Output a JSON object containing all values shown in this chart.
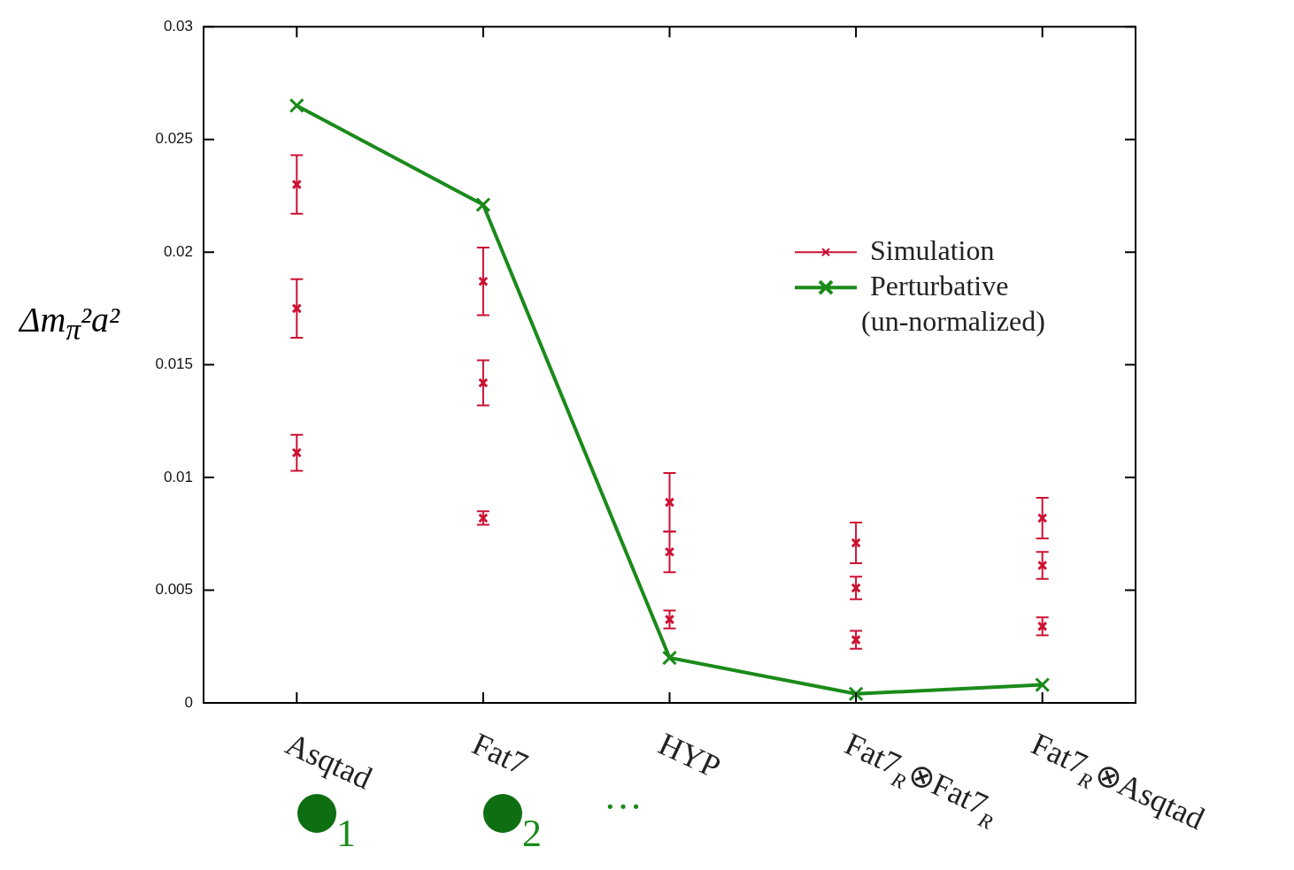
{
  "chart_data": {
    "type": "line",
    "ylabel": "Δm$_{π}$²a²",
    "categories": [
      "Asqtad",
      "Fat7",
      "HYP",
      "Fat7$_{R}$⊗Fat7$_{R}$",
      "Fat7$_{R}$⊗Asqtad"
    ],
    "ylim": [
      0,
      0.03
    ],
    "yticks": [
      0,
      0.005,
      0.01,
      0.015,
      0.02,
      0.025,
      0.03
    ],
    "grid": false,
    "legend": "right",
    "series": [
      {
        "name": "Simulation",
        "type": "scatter",
        "color": "#cc1133",
        "marker": "cross",
        "x": [
          "Asqtad",
          "Asqtad",
          "Asqtad",
          "Fat7",
          "Fat7",
          "Fat7",
          "HYP",
          "HYP",
          "HYP",
          "Fat7$_{R}$⊗Fat7$_{R}$",
          "Fat7$_{R}$⊗Fat7$_{R}$",
          "Fat7$_{R}$⊗Fat7$_{R}$",
          "Fat7$_{R}$⊗Asqtad",
          "Fat7$_{R}$⊗Asqtad",
          "Fat7$_{R}$⊗Asqtad"
        ],
        "values": [
          0.023,
          0.0175,
          0.0111,
          0.0187,
          0.0142,
          0.0082,
          0.0089,
          0.0067,
          0.0037,
          0.0071,
          0.0051,
          0.0028,
          0.0082,
          0.0061,
          0.0034
        ],
        "errors": [
          0.0013,
          0.0013,
          0.0008,
          0.0015,
          0.001,
          0.0003,
          0.0013,
          0.0009,
          0.0004,
          0.0009,
          0.0005,
          0.0004,
          0.0009,
          0.0006,
          0.0004
        ]
      },
      {
        "name": "Perturbative (un-normalized)",
        "type": "line",
        "color": "#1a8a1a",
        "marker": "cross",
        "line_style": "solid",
        "values": [
          0.0265,
          0.0221,
          0.002,
          0.0004,
          0.0008
        ]
      }
    ],
    "annotations": [
      "1",
      "2",
      "···"
    ]
  }
}
